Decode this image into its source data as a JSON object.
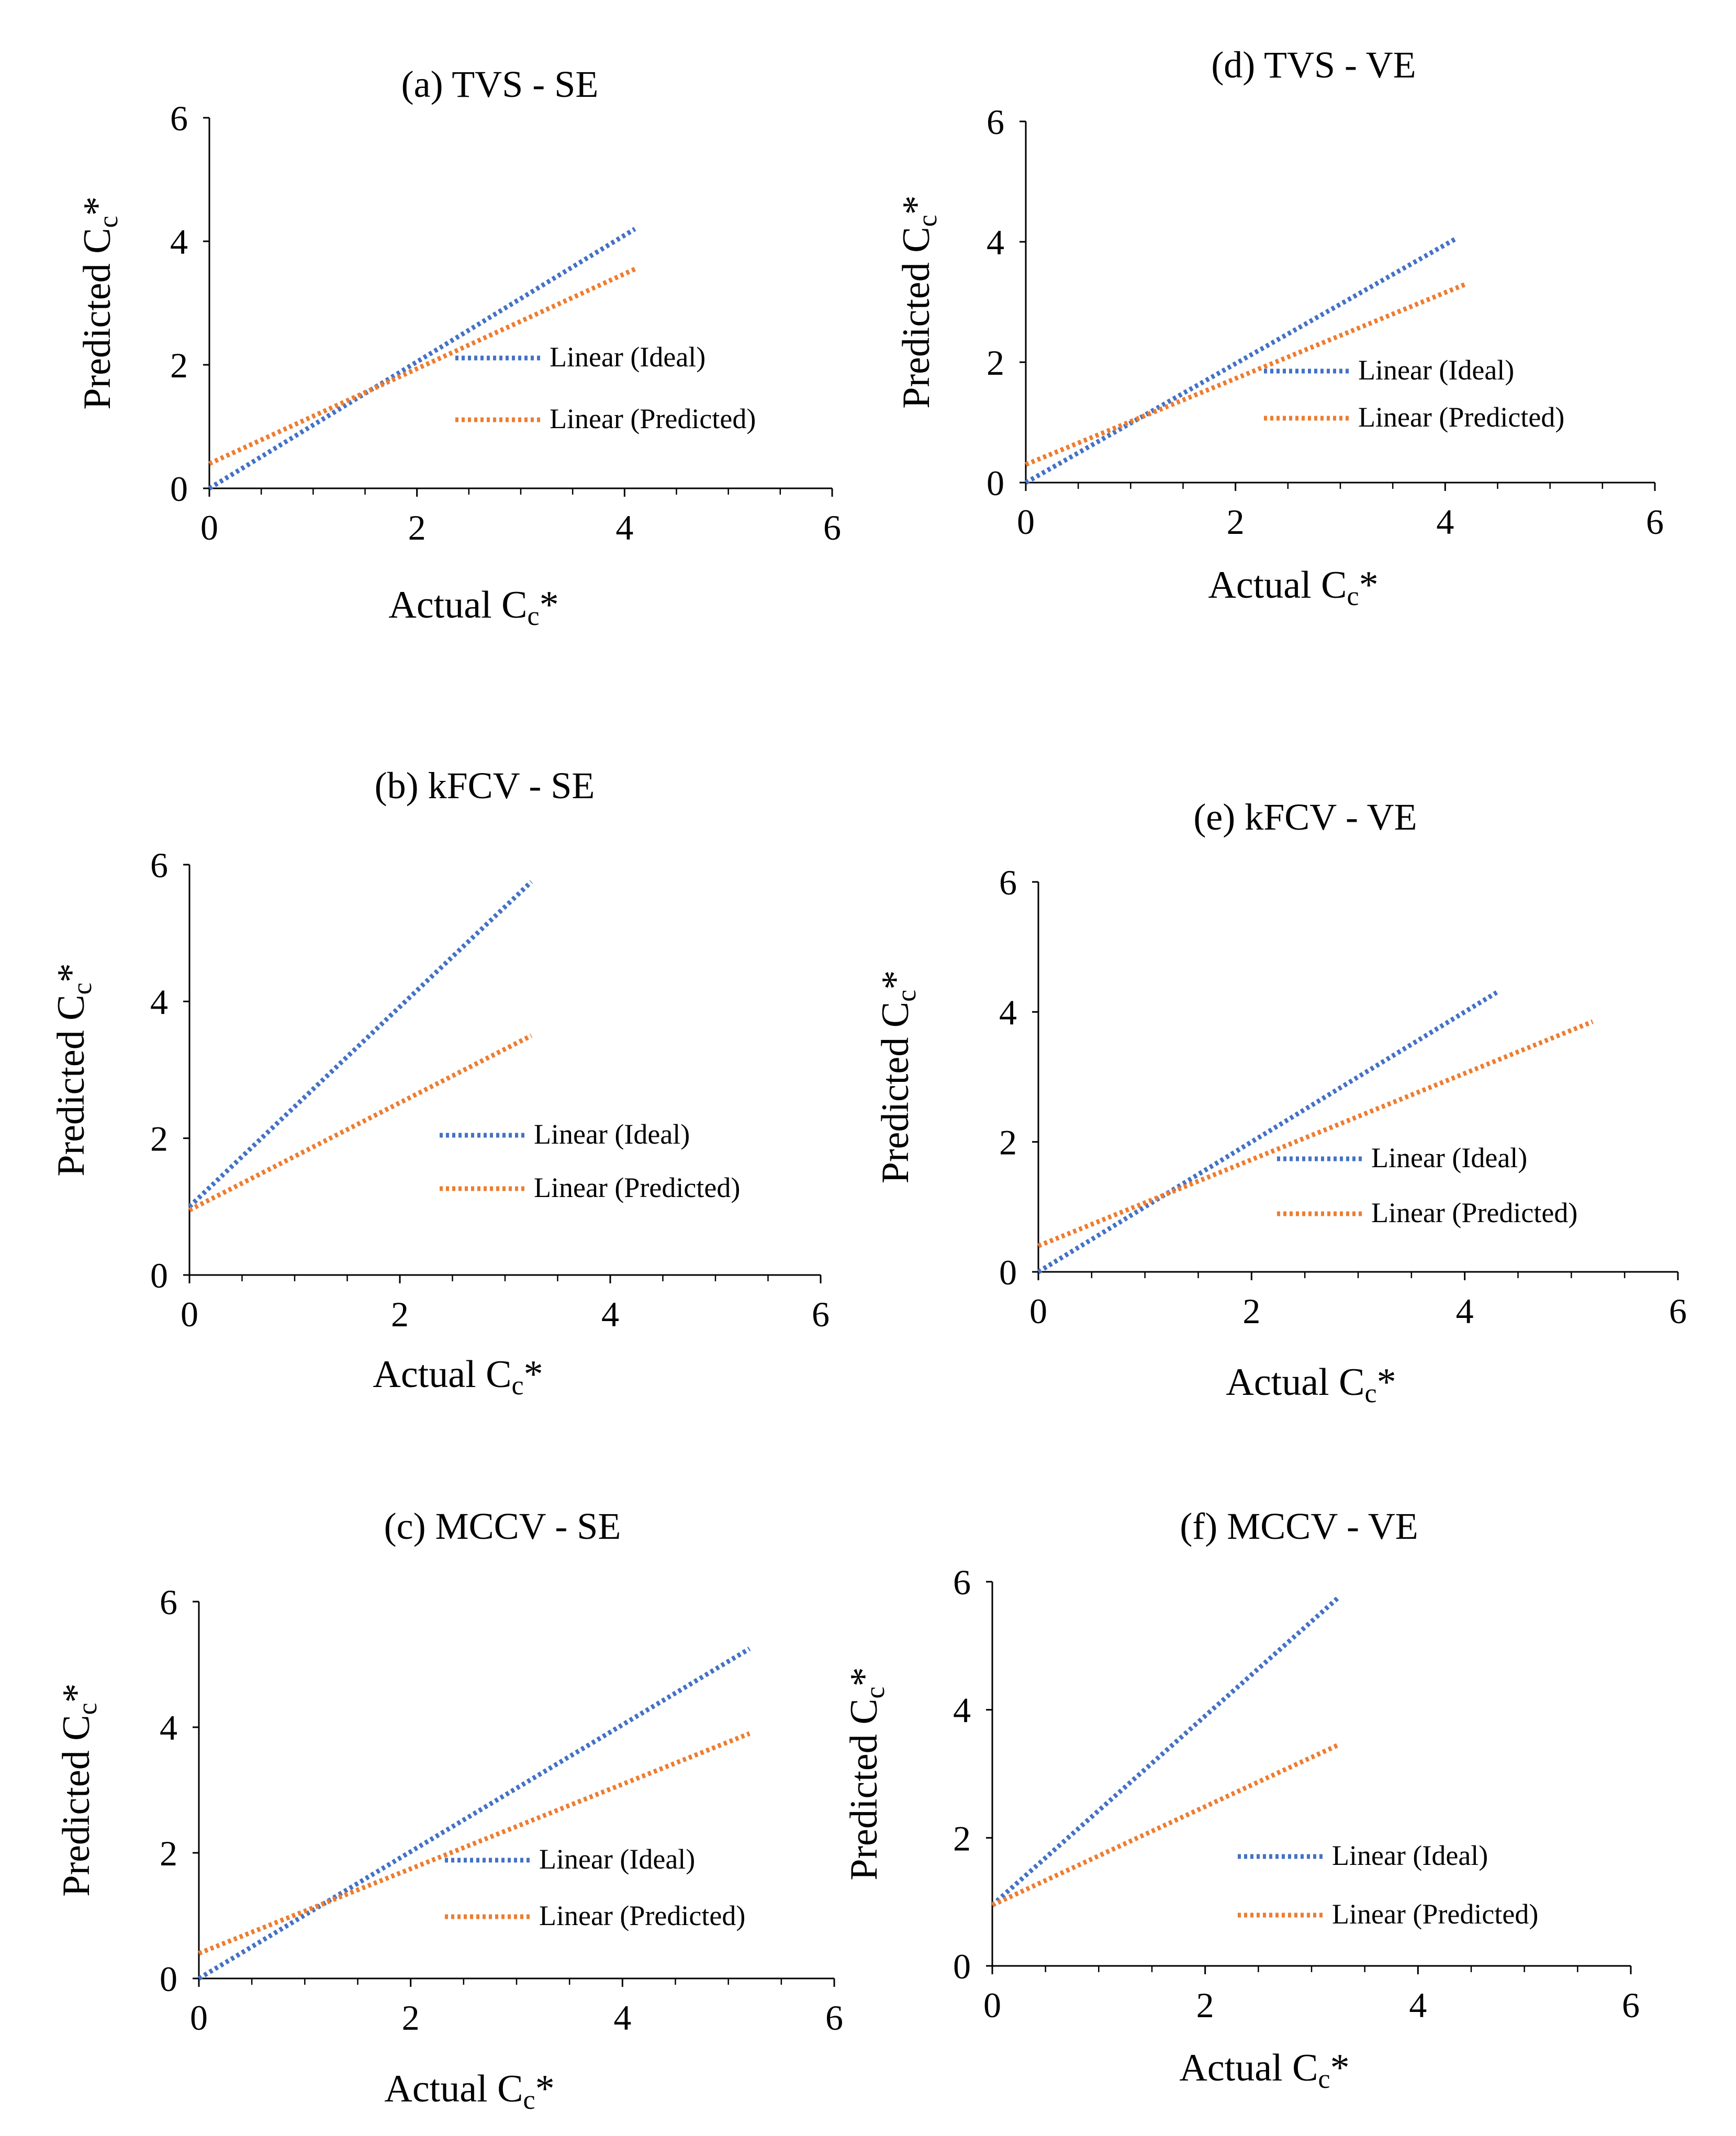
{
  "colors": {
    "ideal": "#4472C4",
    "predicted": "#ED7D31",
    "axis": "#000000"
  },
  "chart_data": [
    {
      "type": "line",
      "title": "(a) TVS - SE",
      "xlabel": "Actual Cc*",
      "xlabel_main": "Actual C",
      "xlabel_sub": "c",
      "xlabel_post": "*",
      "ylabel": "Predicted Cc*",
      "ylabel_main": "Predicted C",
      "ylabel_sub": "c",
      "ylabel_post": "*",
      "xlim": [
        0,
        6
      ],
      "ylim": [
        0,
        6
      ],
      "xticks": [
        "0",
        "2",
        "4",
        "6"
      ],
      "yticks": [
        "0",
        "2",
        "4",
        "6"
      ],
      "minor_xticks": [
        0.5,
        1,
        1.5,
        2.5,
        3,
        3.5,
        4.5,
        5,
        5.5
      ],
      "series": [
        {
          "name": "Linear (Ideal)",
          "x": [
            0,
            4.1
          ],
          "y": [
            0,
            4.2
          ]
        },
        {
          "name": "Linear (Predicted)",
          "x": [
            0,
            4.1
          ],
          "y": [
            0.4,
            3.55
          ]
        }
      ]
    },
    {
      "type": "line",
      "title": "(b) kFCV - SE",
      "xlabel": "Actual Cc*",
      "xlabel_main": "Actual C",
      "xlabel_sub": "c",
      "xlabel_post": "*",
      "ylabel": "Predicted Cc*",
      "ylabel_main": "Predicted C",
      "ylabel_sub": "c",
      "ylabel_post": "*",
      "xlim": [
        0,
        6
      ],
      "ylim": [
        0,
        6
      ],
      "xticks": [
        "0",
        "2",
        "4",
        "6"
      ],
      "yticks": [
        "0",
        "2",
        "4",
        "6"
      ],
      "minor_xticks": [
        0.5,
        1,
        1.5,
        2.5,
        3,
        3.5,
        4.5,
        5,
        5.5
      ],
      "series": [
        {
          "name": "Linear (Ideal)",
          "x": [
            0,
            3.25
          ],
          "y": [
            1.0,
            5.75
          ]
        },
        {
          "name": "Linear (Predicted)",
          "x": [
            0,
            3.25
          ],
          "y": [
            0.95,
            3.5
          ]
        }
      ]
    },
    {
      "type": "line",
      "title": "(c) MCCV - SE",
      "xlabel": "Actual Cc*",
      "xlabel_main": "Actual C",
      "xlabel_sub": "c",
      "xlabel_post": "*",
      "ylabel": "Predicted Cc*",
      "ylabel_main": "Predicted C",
      "ylabel_sub": "c",
      "ylabel_post": "*",
      "xlim": [
        0,
        6
      ],
      "ylim": [
        0,
        6
      ],
      "xticks": [
        "0",
        "2",
        "4",
        "6"
      ],
      "yticks": [
        "0",
        "2",
        "4",
        "6"
      ],
      "minor_xticks": [
        0.5,
        1,
        1.5,
        2.5,
        3,
        3.5,
        4.5,
        5,
        5.5
      ],
      "series": [
        {
          "name": "Linear (Ideal)",
          "x": [
            0,
            5.2
          ],
          "y": [
            0,
            5.25
          ]
        },
        {
          "name": "Linear (Predicted)",
          "x": [
            0,
            5.2
          ],
          "y": [
            0.4,
            3.9
          ]
        }
      ]
    },
    {
      "type": "line",
      "title": "(d) TVS - VE",
      "xlabel": "Actual Cc*",
      "xlabel_main": "Actual C",
      "xlabel_sub": "c",
      "xlabel_post": "*",
      "ylabel": "Predicted Cc*",
      "ylabel_main": "Predicted C",
      "ylabel_sub": "c",
      "ylabel_post": "*",
      "xlim": [
        0,
        6
      ],
      "ylim": [
        0,
        6
      ],
      "xticks": [
        "0",
        "2",
        "4",
        "6"
      ],
      "yticks": [
        "0",
        "2",
        "4",
        "6"
      ],
      "minor_xticks": [
        0.5,
        1,
        1.5,
        2.5,
        3,
        3.5,
        4.5,
        5,
        5.5
      ],
      "series": [
        {
          "name": "Linear (Ideal)",
          "x": [
            0,
            4.1
          ],
          "y": [
            0,
            4.05
          ]
        },
        {
          "name": "Linear (Predicted)",
          "x": [
            0,
            4.2
          ],
          "y": [
            0.3,
            3.3
          ]
        }
      ]
    },
    {
      "type": "line",
      "title": "(e) kFCV - VE",
      "xlabel": "Actual Cc*",
      "xlabel_main": "Actual C",
      "xlabel_sub": "c",
      "xlabel_post": "*",
      "ylabel": "Predicted Cc*",
      "ylabel_main": "Predicted C",
      "ylabel_sub": "c",
      "ylabel_post": "*",
      "xlim": [
        0,
        6
      ],
      "ylim": [
        0,
        6
      ],
      "xticks": [
        "0",
        "2",
        "4",
        "6"
      ],
      "yticks": [
        "0",
        "2",
        "4",
        "6"
      ],
      "minor_xticks": [
        0.5,
        1,
        1.5,
        2.5,
        3,
        3.5,
        4.5,
        5,
        5.5
      ],
      "series": [
        {
          "name": "Linear (Ideal)",
          "x": [
            0,
            4.3
          ],
          "y": [
            0,
            4.3
          ]
        },
        {
          "name": "Linear (Predicted)",
          "x": [
            0,
            5.2
          ],
          "y": [
            0.4,
            3.85
          ]
        }
      ]
    },
    {
      "type": "line",
      "title": "(f) MCCV - VE",
      "xlabel": "Actual Cc*",
      "xlabel_main": "Actual C",
      "xlabel_sub": "c",
      "xlabel_post": "*",
      "ylabel": "Predicted Cc*",
      "ylabel_main": "Predicted C",
      "ylabel_sub": "c",
      "ylabel_post": "*",
      "xlim": [
        0,
        6
      ],
      "ylim": [
        0,
        6
      ],
      "xticks": [
        "0",
        "2",
        "4",
        "6"
      ],
      "yticks": [
        "0",
        "2",
        "4",
        "6"
      ],
      "minor_xticks": [
        0.5,
        1,
        1.5,
        2.5,
        3,
        3.5,
        4.5,
        5,
        5.5
      ],
      "series": [
        {
          "name": "Linear (Ideal)",
          "x": [
            0,
            3.25
          ],
          "y": [
            0.95,
            5.75
          ]
        },
        {
          "name": "Linear (Predicted)",
          "x": [
            0,
            3.25
          ],
          "y": [
            0.95,
            3.45
          ]
        }
      ]
    }
  ]
}
